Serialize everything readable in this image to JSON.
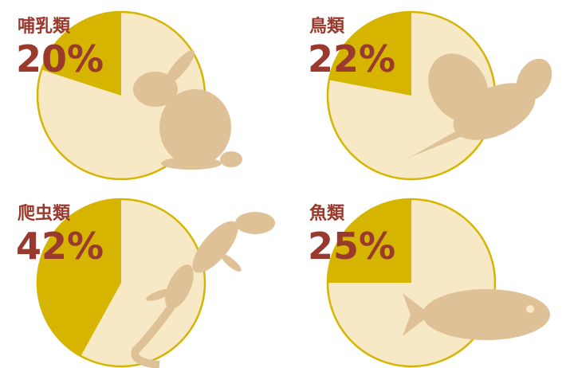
{
  "chart_data": [
    {
      "type": "pie",
      "title": "哺乳類",
      "values": [
        20
      ],
      "value_labels": [
        "20%"
      ],
      "color": "#d6b500"
    },
    {
      "type": "pie",
      "title": "鳥類",
      "values": [
        22
      ],
      "value_labels": [
        "22%"
      ],
      "color": "#d6b500"
    },
    {
      "type": "pie",
      "title": "爬虫類",
      "values": [
        42
      ],
      "value_labels": [
        "42%"
      ],
      "color": "#d6b500"
    },
    {
      "type": "pie",
      "title": "魚類",
      "values": [
        25
      ],
      "value_labels": [
        "25%"
      ],
      "color": "#d6b500"
    }
  ]
}
